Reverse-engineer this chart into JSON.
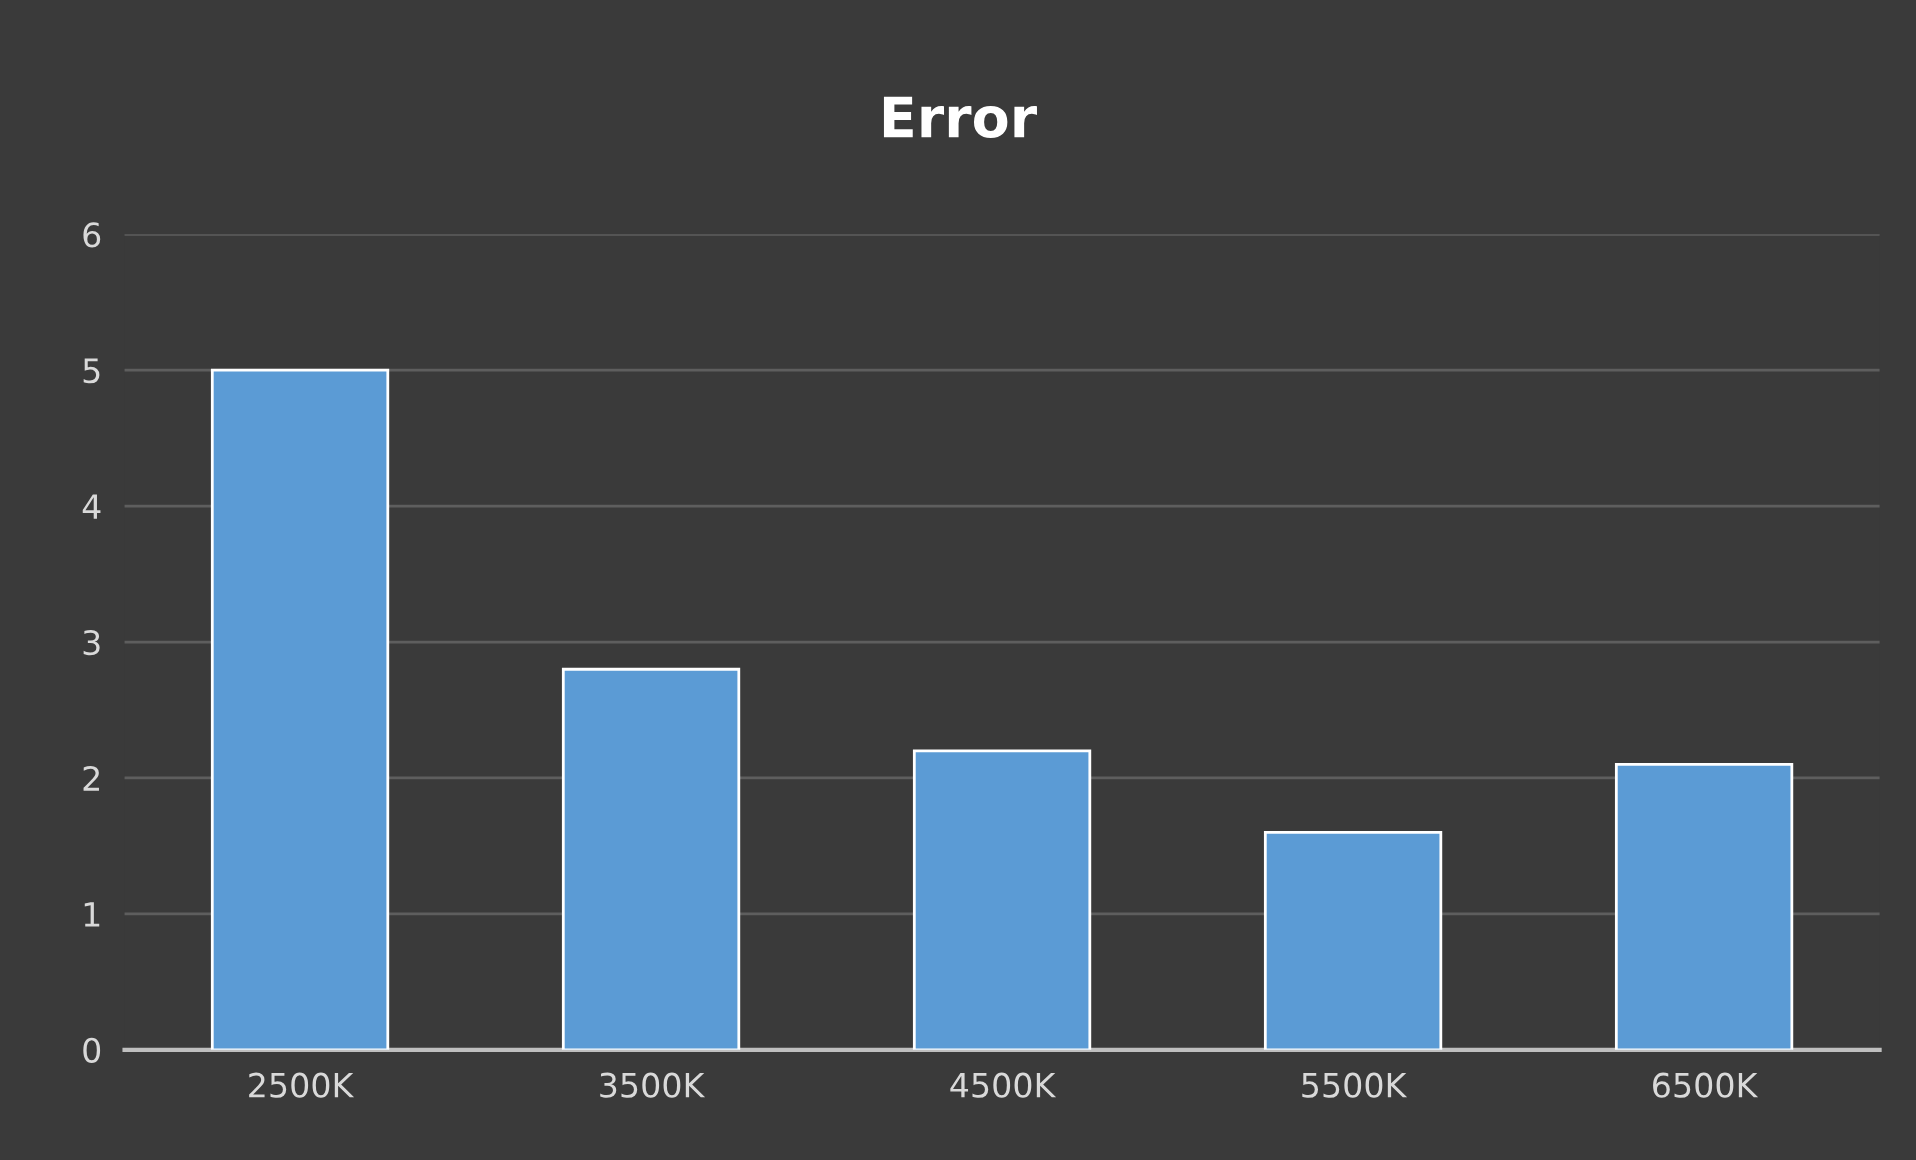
{
  "chart_data": {
    "type": "bar",
    "title": "Error",
    "categories": [
      "2500K",
      "3500K",
      "4500K",
      "5500K",
      "6500K"
    ],
    "values": [
      5.0,
      2.8,
      2.2,
      1.6,
      2.1
    ],
    "color": "#5b9bd5",
    "ylim": [
      0,
      6
    ],
    "yticks": [
      0,
      1,
      2,
      3,
      4,
      5,
      6
    ],
    "grid": "y"
  }
}
